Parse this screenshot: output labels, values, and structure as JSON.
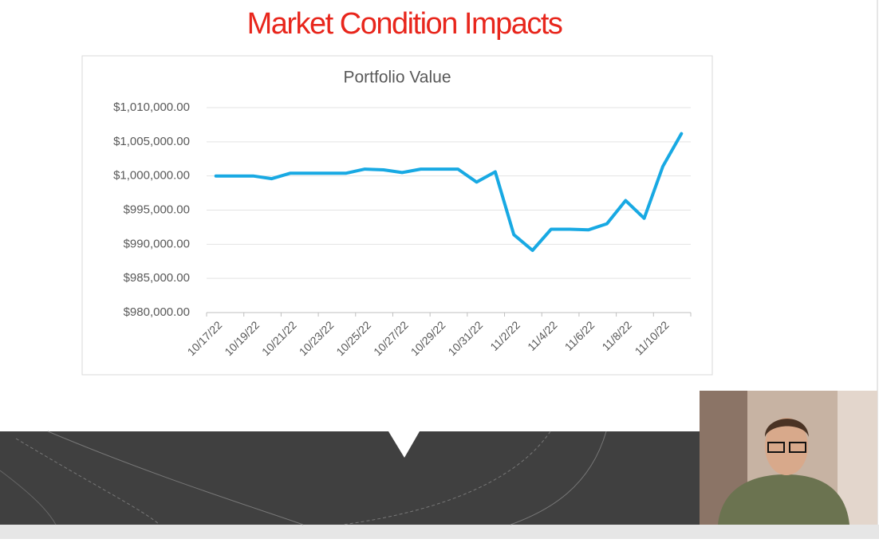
{
  "slide_title": "Market Condition Impacts",
  "chart_data": {
    "type": "line",
    "title": "Portfolio Value",
    "categories": [
      "10/17/22",
      null,
      "10/19/22",
      null,
      "10/21/22",
      null,
      "10/23/22",
      null,
      "10/25/22",
      null,
      "10/27/22",
      null,
      "10/29/22",
      null,
      "10/31/22",
      null,
      "11/2/22",
      null,
      "11/4/22",
      null,
      "11/6/22",
      null,
      "11/8/22",
      null,
      "11/10/22",
      null
    ],
    "series": [
      {
        "name": "Portfolio Value",
        "color": "#18a9e3",
        "values": [
          1000000,
          1000000,
          1000000,
          999600,
          1000400,
          1000400,
          1000400,
          1000400,
          1001000,
          1000900,
          1000500,
          1001000,
          1001000,
          1001000,
          999100,
          1000600,
          991400,
          989100,
          992200,
          992200,
          992100,
          993000,
          996400,
          993800,
          1001400,
          1006200
        ]
      }
    ],
    "ylim": [
      980000,
      1010000
    ],
    "yticks": [
      {
        "value": 980000,
        "label": "$980,000.00"
      },
      {
        "value": 985000,
        "label": "$985,000.00"
      },
      {
        "value": 990000,
        "label": "$990,000.00"
      },
      {
        "value": 995000,
        "label": "$995,000.00"
      },
      {
        "value": 1000000,
        "label": "$1,000,000.00"
      },
      {
        "value": 1005000,
        "label": "$1,005,000.00"
      },
      {
        "value": 1010000,
        "label": "$1,010,000.00"
      }
    ],
    "grid": true
  }
}
